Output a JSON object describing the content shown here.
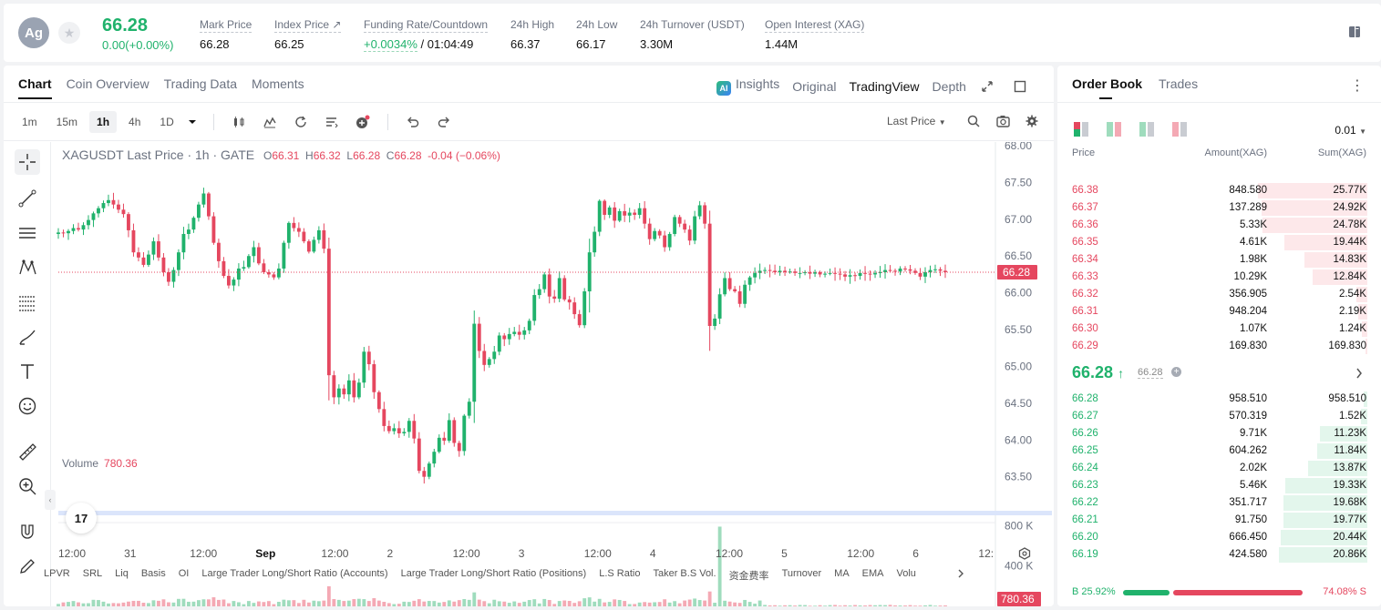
{
  "header": {
    "coin_symbol": "Ag",
    "last_price": "66.28",
    "change": "0.00(+0.00%)",
    "stats": [
      {
        "label": "Mark Price",
        "value": "66.28"
      },
      {
        "label": "Index Price ↗",
        "value": "66.25"
      },
      {
        "label": "Funding Rate/Countdown",
        "value_green": "+0.0034%",
        "value": " / 01:04:49"
      },
      {
        "label": "24h High",
        "value": "66.37"
      },
      {
        "label": "24h Low",
        "value": "66.17"
      },
      {
        "label": "24h Turnover (USDT)",
        "value": "3.30M"
      },
      {
        "label": "Open Interest (XAG)",
        "value": "1.44M"
      }
    ]
  },
  "chart_tabs": [
    "Chart",
    "Coin Overview",
    "Trading Data",
    "Moments"
  ],
  "view_tabs": {
    "insights": "Insights",
    "original": "Original",
    "tradingview": "TradingView",
    "depth": "Depth"
  },
  "timeframes": [
    "1m",
    "15m",
    "1h",
    "4h",
    "1D"
  ],
  "active_timeframe": "1h",
  "price_type": "Last Price",
  "legend": {
    "symbol": "XAGUSDT Last Price · 1h · GATE",
    "o_label": "O",
    "o": "66.31",
    "h_label": "H",
    "h": "66.32",
    "l_label": "L",
    "l": "66.28",
    "c_label": "C",
    "c": "66.28",
    "change": "-0.04 (−0.06%)"
  },
  "volume_legend": {
    "label": "Volume",
    "value": "780.36"
  },
  "tv_logo": "17",
  "bottom_indicators": [
    "LPVR",
    "SRL",
    "Liq",
    "Basis",
    "OI",
    "Large Trader Long/Short Ratio (Accounts)",
    "Large Trader Long/Short Ratio (Positions)",
    "L.S Ratio",
    "Taker B.S Vol.",
    "资金费率",
    "Turnover",
    "MA",
    "EMA",
    "Volu"
  ],
  "chart_data": {
    "type": "candlestick",
    "symbol": "XAGUSDT",
    "interval": "1h",
    "ylim": [
      63.1,
      68.0
    ],
    "y_ticks": [
      "68.00",
      "67.50",
      "67.00",
      "66.50",
      "66.00",
      "65.50",
      "65.00",
      "64.50",
      "64.00",
      "63.50"
    ],
    "y_tick_values": [
      68.0,
      67.5,
      67.0,
      66.5,
      66.0,
      65.5,
      65.0,
      64.5,
      64.0,
      63.5
    ],
    "last_price_label": "66.28",
    "last_price": 66.28,
    "volume_ylim": [
      0,
      830000
    ],
    "volume_ticks": [
      "800 K",
      "400 K"
    ],
    "volume_tick_values": [
      800000,
      400000
    ],
    "last_volume_label": "780.36",
    "x_labels": [
      "12:00",
      "31",
      "12:00",
      "Sep",
      "12:00",
      "2",
      "12:00",
      "3",
      "12:00",
      "4",
      "12:00",
      "5",
      "12:00",
      "6",
      "12:"
    ],
    "closes": [
      66.82,
      66.81,
      66.84,
      66.88,
      66.86,
      66.92,
      66.99,
      67.08,
      67.15,
      67.22,
      67.26,
      67.2,
      67.13,
      67.07,
      66.85,
      66.55,
      66.48,
      66.38,
      66.52,
      66.7,
      66.48,
      66.28,
      66.15,
      66.31,
      66.55,
      66.8,
      66.86,
      67.02,
      67.2,
      67.35,
      67.04,
      66.68,
      66.43,
      66.23,
      66.1,
      66.18,
      66.33,
      66.35,
      66.5,
      66.62,
      66.4,
      66.28,
      66.25,
      66.21,
      66.33,
      66.68,
      66.95,
      66.88,
      66.83,
      66.7,
      66.56,
      66.72,
      66.85,
      66.6,
      64.88,
      64.58,
      64.7,
      64.62,
      64.81,
      64.58,
      64.78,
      65.2,
      65.03,
      64.65,
      64.42,
      64.19,
      64.12,
      64.16,
      64.09,
      64.11,
      64.26,
      64.02,
      63.58,
      63.5,
      63.68,
      63.84,
      64.03,
      63.99,
      64.27,
      63.96,
      63.85,
      64.33,
      64.52,
      65.58,
      65.21,
      65.02,
      65.1,
      65.2,
      65.42,
      65.37,
      65.44,
      65.47,
      65.43,
      65.49,
      65.62,
      65.97,
      66.05,
      66.25,
      65.95,
      65.92,
      66.2,
      65.91,
      65.87,
      65.71,
      65.56,
      66.02,
      66.55,
      66.83,
      67.25,
      67.06,
      67.16,
      66.98,
      67.11,
      67.05,
      67.09,
      67.06,
      67.15,
      66.94,
      66.73,
      66.84,
      66.78,
      66.62,
      66.8,
      67.03,
      66.94,
      66.86,
      66.71,
      67.04,
      67.19,
      66.94,
      65.55,
      65.65,
      65.98,
      66.2,
      66.05,
      66.02,
      65.85,
      66.11,
      66.21,
      66.27,
      66.3,
      66.31,
      66.3,
      66.28,
      66.3,
      66.28,
      66.29,
      66.27,
      66.27,
      66.28,
      66.26,
      66.28,
      66.25,
      66.26,
      66.27,
      66.26,
      66.25,
      66.22,
      66.24,
      66.23,
      66.27,
      66.26,
      66.25,
      66.27,
      66.28,
      66.31,
      66.3,
      66.29,
      66.33,
      66.32,
      66.3,
      66.27,
      66.22,
      66.28,
      66.31,
      66.32,
      66.3,
      66.28
    ]
  },
  "orderbook": {
    "tabs": [
      "Order Book",
      "Trades"
    ],
    "precision": "0.01",
    "head": {
      "price": "Price",
      "amount": "Amount(XAG)",
      "sum": "Sum(XAG)"
    },
    "asks": [
      {
        "price": "66.38",
        "amount": "848.580",
        "sum": "25.77K",
        "depth": 25.77
      },
      {
        "price": "66.37",
        "amount": "137.289",
        "sum": "24.92K",
        "depth": 24.92
      },
      {
        "price": "66.36",
        "amount": "5.33K",
        "sum": "24.78K",
        "depth": 24.78
      },
      {
        "price": "66.35",
        "amount": "4.61K",
        "sum": "19.44K",
        "depth": 19.44
      },
      {
        "price": "66.34",
        "amount": "1.98K",
        "sum": "14.83K",
        "depth": 14.83
      },
      {
        "price": "66.33",
        "amount": "10.29K",
        "sum": "12.84K",
        "depth": 12.84
      },
      {
        "price": "66.32",
        "amount": "356.905",
        "sum": "2.54K",
        "depth": 2.54
      },
      {
        "price": "66.31",
        "amount": "948.204",
        "sum": "2.19K",
        "depth": 2.19
      },
      {
        "price": "66.30",
        "amount": "1.07K",
        "sum": "1.24K",
        "depth": 1.24
      },
      {
        "price": "66.29",
        "amount": "169.830",
        "sum": "169.830",
        "depth": 0.17
      }
    ],
    "mid_price": "66.28",
    "mid_mark": "66.28",
    "bids": [
      {
        "price": "66.28",
        "amount": "958.510",
        "sum": "958.510",
        "depth": 0.96
      },
      {
        "price": "66.27",
        "amount": "570.319",
        "sum": "1.52K",
        "depth": 1.52
      },
      {
        "price": "66.26",
        "amount": "9.71K",
        "sum": "11.23K",
        "depth": 11.23
      },
      {
        "price": "66.25",
        "amount": "604.262",
        "sum": "11.84K",
        "depth": 11.84
      },
      {
        "price": "66.24",
        "amount": "2.02K",
        "sum": "13.87K",
        "depth": 13.87
      },
      {
        "price": "66.23",
        "amount": "5.46K",
        "sum": "19.33K",
        "depth": 19.33
      },
      {
        "price": "66.22",
        "amount": "351.717",
        "sum": "19.68K",
        "depth": 19.68
      },
      {
        "price": "66.21",
        "amount": "91.750",
        "sum": "19.77K",
        "depth": 19.77
      },
      {
        "price": "66.20",
        "amount": "666.450",
        "sum": "20.44K",
        "depth": 20.44
      },
      {
        "price": "66.19",
        "amount": "424.580",
        "sum": "20.86K",
        "depth": 20.86
      }
    ],
    "buy_ratio": "B 25.92%",
    "sell_ratio": "74.08% S",
    "buy_fraction": 0.2592
  },
  "colors": {
    "up": "#20b26c",
    "down": "#e5475f",
    "ask_bg": "#fde8ea",
    "bid_bg": "#e3f6ec"
  }
}
